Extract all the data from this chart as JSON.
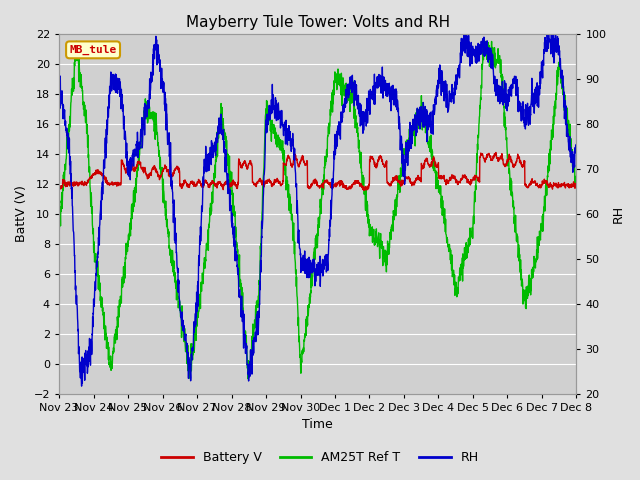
{
  "title": "Mayberry Tule Tower: Volts and RH",
  "xlabel": "Time",
  "ylabel_left": "BattV (V)",
  "ylabel_right": "RH",
  "ylim_left": [
    -2,
    22
  ],
  "ylim_right": [
    20,
    100
  ],
  "yticks_left": [
    -2,
    0,
    2,
    4,
    6,
    8,
    10,
    12,
    14,
    16,
    18,
    20,
    22
  ],
  "yticks_right": [
    20,
    30,
    40,
    50,
    60,
    70,
    80,
    90,
    100
  ],
  "background_color": "#e0e0e0",
  "plot_bg_color": "#d0d0d0",
  "grid_color": "#ffffff",
  "title_fontsize": 11,
  "axis_fontsize": 9,
  "tick_fontsize": 8,
  "legend_fontsize": 9,
  "watermark_text": "MB_tule",
  "watermark_color": "#cc0000",
  "watermark_bg": "#ffffcc",
  "watermark_border": "#cc9900",
  "line_colors": {
    "battery": "#cc0000",
    "am25t": "#00bb00",
    "rh": "#0000cc"
  },
  "line_widths": {
    "battery": 1.0,
    "am25t": 1.0,
    "rh": 1.0
  },
  "xtick_labels": [
    "Nov 23",
    "Nov 24",
    "Nov 25",
    "Nov 26",
    "Nov 27",
    "Nov 28",
    "Nov 29",
    "Nov 30",
    "Dec 1",
    "Dec 2",
    "Dec 3",
    "Dec 4",
    "Dec 5",
    "Dec 6",
    "Dec 7",
    "Dec 8"
  ],
  "num_days": 15,
  "points_per_day": 144
}
